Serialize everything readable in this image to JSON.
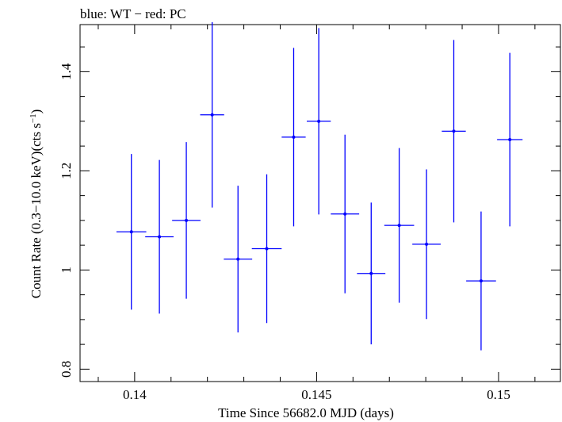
{
  "chart_data": {
    "type": "scatter",
    "title": "blue: WT − red: PC",
    "xlabel": "Time Since 56682.0 MJD (days)",
    "ylabel_main": "Count Rate (0.3−10.0 keV)(cts s",
    "ylabel_sup": "−1",
    "ylabel_close": ")",
    "xlim": [
      0.1385,
      0.1517
    ],
    "ylim": [
      0.775,
      1.495
    ],
    "xticks": [
      0.14,
      0.145,
      0.15
    ],
    "xtick_labels": [
      "0.14",
      "0.145",
      "0.15"
    ],
    "yticks": [
      0.8,
      1.0,
      1.2,
      1.4
    ],
    "ytick_labels": [
      "0.8",
      "1",
      "1.2",
      "1.4"
    ],
    "grid": false,
    "series": [
      {
        "color": "#0000ff",
        "points": [
          {
            "x": 0.13991,
            "xerr": 0.00041,
            "y": 1.077,
            "yerr": 0.157
          },
          {
            "x": 0.14068,
            "xerr": 0.00039,
            "y": 1.067,
            "yerr": 0.155
          },
          {
            "x": 0.14142,
            "xerr": 0.00039,
            "y": 1.1,
            "yerr": 0.158
          },
          {
            "x": 0.14213,
            "xerr": 0.00033,
            "y": 1.313,
            "yerr": 0.187
          },
          {
            "x": 0.14284,
            "xerr": 0.00039,
            "y": 1.022,
            "yerr": 0.148
          },
          {
            "x": 0.14363,
            "xerr": 0.00041,
            "y": 1.043,
            "yerr": 0.15
          },
          {
            "x": 0.14437,
            "xerr": 0.00033,
            "y": 1.268,
            "yerr": 0.18
          },
          {
            "x": 0.14506,
            "xerr": 0.00033,
            "y": 1.3,
            "yerr": 0.188
          },
          {
            "x": 0.14578,
            "xerr": 0.00039,
            "y": 1.113,
            "yerr": 0.16
          },
          {
            "x": 0.1465,
            "xerr": 0.00039,
            "y": 0.993,
            "yerr": 0.143
          },
          {
            "x": 0.14727,
            "xerr": 0.00041,
            "y": 1.09,
            "yerr": 0.156
          },
          {
            "x": 0.14802,
            "xerr": 0.00039,
            "y": 1.052,
            "yerr": 0.151
          },
          {
            "x": 0.14877,
            "xerr": 0.00033,
            "y": 1.28,
            "yerr": 0.184
          },
          {
            "x": 0.14952,
            "xerr": 0.00041,
            "y": 0.978,
            "yerr": 0.14
          },
          {
            "x": 0.15031,
            "xerr": 0.00035,
            "y": 1.263,
            "yerr": 0.175
          }
        ]
      }
    ]
  }
}
